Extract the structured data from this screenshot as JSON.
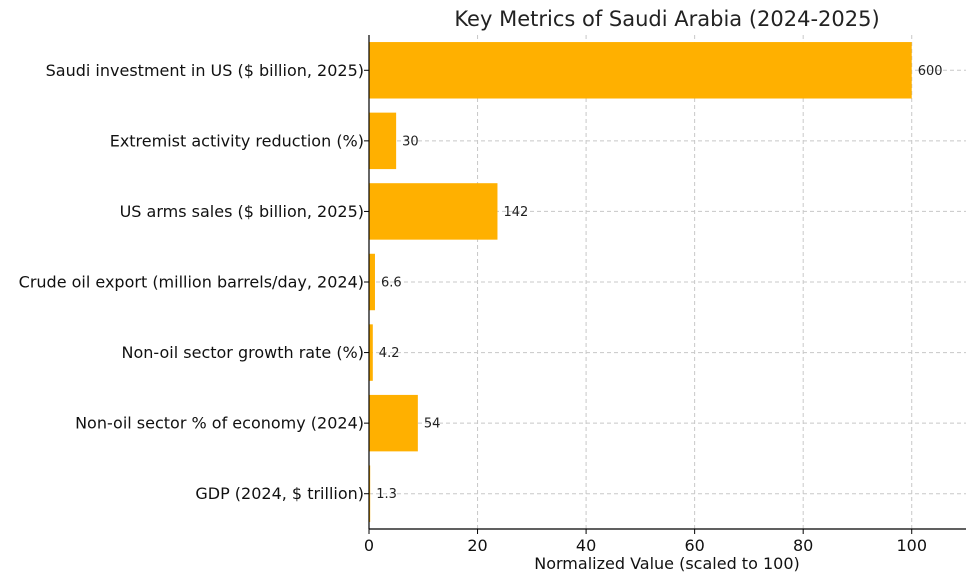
{
  "chart_data": {
    "type": "bar",
    "orientation": "horizontal",
    "title": "Key Metrics of Saudi Arabia (2024-2025)",
    "xlabel": "Normalized Value (scaled to 100)",
    "ylabel": "",
    "xlim": [
      0,
      110
    ],
    "xticks": [
      0,
      20,
      40,
      60,
      80,
      100
    ],
    "grid": true,
    "bar_color": "#FFB000",
    "categories": [
      "GDP (2024, $ trillion)",
      "Non-oil sector % of economy (2024)",
      "Non-oil sector growth rate (%)",
      "Crude oil export (million barrels/day, 2024)",
      "US arms sales ($ billion, 2025)",
      "Extremist activity reduction (%)",
      "Saudi investment in US ($ billion, 2025)"
    ],
    "values": [
      0.22,
      9.0,
      0.7,
      1.1,
      23.67,
      5.0,
      100
    ],
    "data_labels": [
      "1.3",
      "54",
      "4.2",
      "6.6",
      "142",
      "30",
      "600"
    ]
  }
}
